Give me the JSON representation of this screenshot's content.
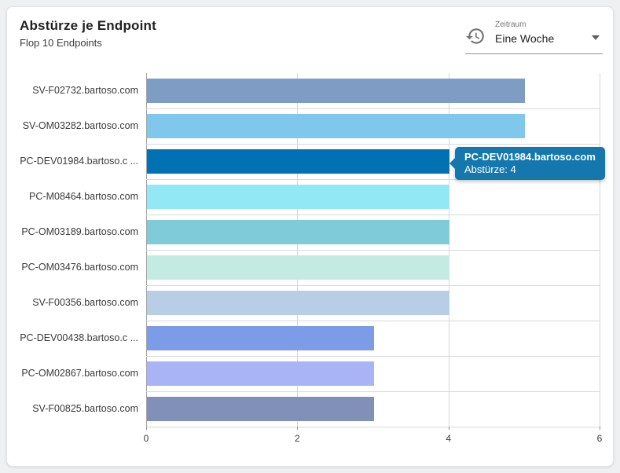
{
  "header": {
    "title": "Abstürze je Endpoint",
    "subtitle": "Flop 10 Endpoints"
  },
  "period_select": {
    "label": "Zeitraum",
    "value": "Eine Woche",
    "icon": "history-icon"
  },
  "tooltip": {
    "title": "PC-DEV01984.bartoso.com",
    "text": "Abstürze: 4",
    "bg": "#1478af"
  },
  "chart_data": {
    "type": "bar",
    "orientation": "horizontal",
    "title": "Abstürze je Endpoint",
    "subtitle": "Flop 10 Endpoints",
    "categories": [
      "SV-F02732.bartoso.com",
      "SV-OM03282.bartoso.com",
      "PC-DEV01984.bartoso.c ...",
      "PC-M08464.bartoso.com",
      "PC-OM03189.bartoso.com",
      "PC-OM03476.bartoso.com",
      "SV-F00356.bartoso.com",
      "PC-DEV00438.bartoso.c ...",
      "PC-OM02867.bartoso.com",
      "SV-F00825.bartoso.com"
    ],
    "values": [
      5,
      5,
      4,
      4,
      4,
      4,
      4,
      3,
      3,
      3
    ],
    "bar_colors": [
      "#7d9dc4",
      "#7fc8eb",
      "#0071b2",
      "#93e8f6",
      "#80cbd9",
      "#c3ebe2",
      "#b8cee7",
      "#7d9ce8",
      "#a9b4f7",
      "#8090b8"
    ],
    "highlighted_category": "PC-DEV01984.bartoso.c ...",
    "value_label": "Abstürze",
    "xlabel": "",
    "ylabel": "",
    "xlim": [
      0,
      6
    ],
    "x_ticks": [
      0,
      2,
      4,
      6
    ],
    "grid": true,
    "legend": false
  }
}
